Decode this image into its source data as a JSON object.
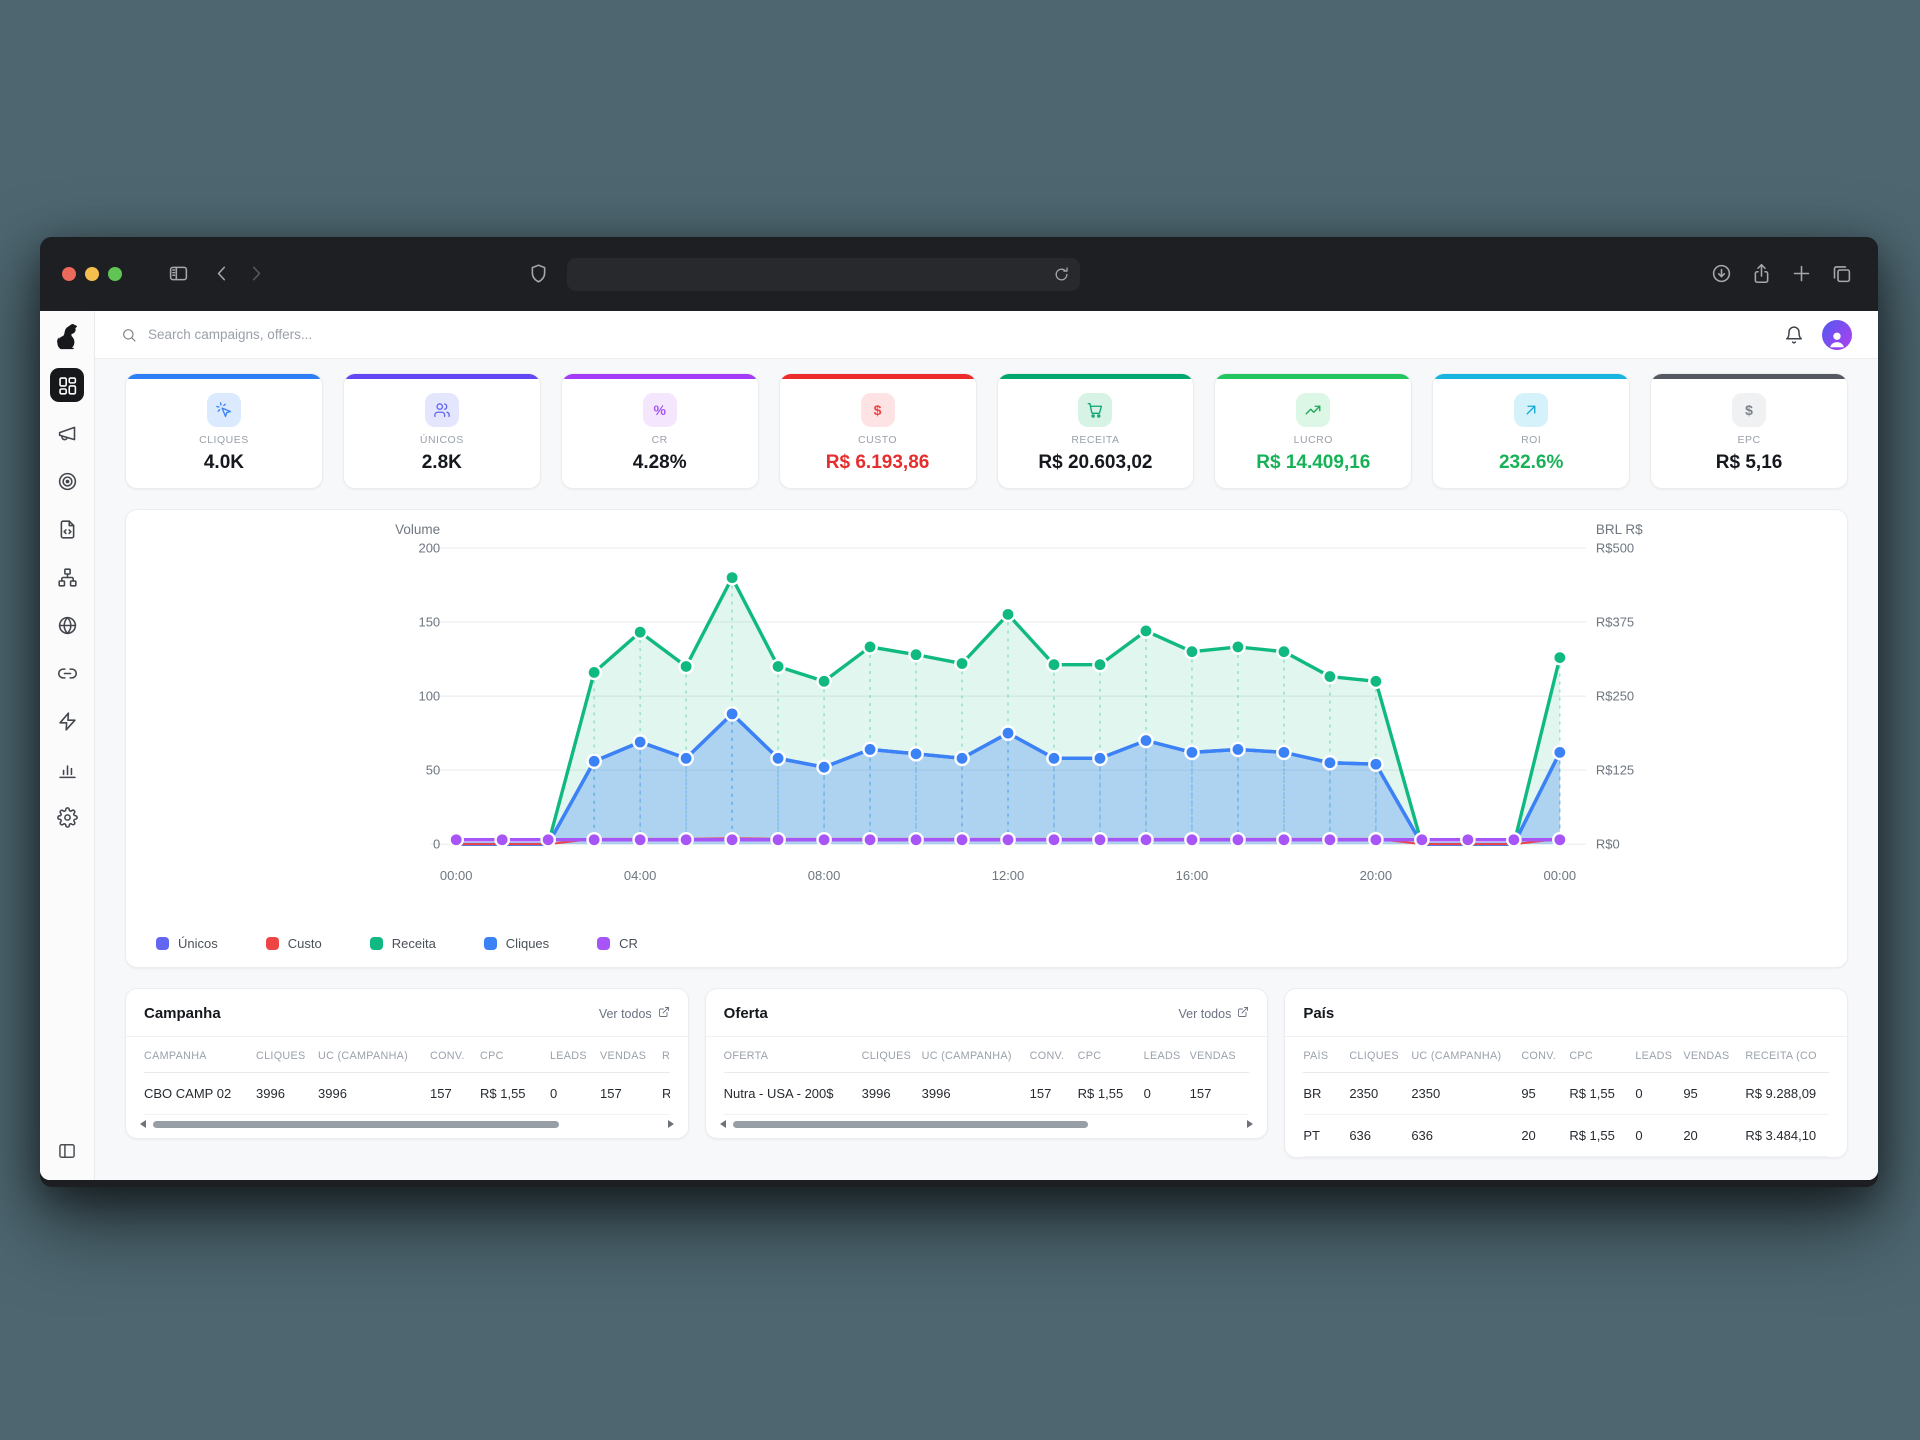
{
  "browser": {
    "traffic_lights": [
      {
        "name": "close",
        "color": "#ec695c"
      },
      {
        "name": "minimize",
        "color": "#f5bf50"
      },
      {
        "name": "zoom",
        "color": "#61c555"
      }
    ],
    "url_value": ""
  },
  "app": {
    "topbar": {
      "search_placeholder": "Search campaigns, offers..."
    },
    "sidebar": {
      "items": [
        {
          "icon": "dashboard-grid",
          "active": true
        },
        {
          "icon": "megaphone",
          "active": false
        },
        {
          "icon": "target",
          "active": false
        },
        {
          "icon": "file-code",
          "active": false
        },
        {
          "icon": "sitemap",
          "active": false
        },
        {
          "icon": "globe",
          "active": false
        },
        {
          "icon": "link",
          "active": false
        },
        {
          "icon": "zap",
          "active": false
        },
        {
          "icon": "bar-chart",
          "active": false
        },
        {
          "icon": "gear",
          "active": false
        }
      ]
    },
    "kpis": [
      {
        "id": "cliques",
        "label": "CLIQUES",
        "value": "4.0K",
        "accent": "#2e7ef6",
        "icon": "cursor-click",
        "icon_color": "#3b82f6",
        "icon_bg": "#dbeafe",
        "value_color": "#15181d"
      },
      {
        "id": "unicos",
        "label": "ÚNICOS",
        "value": "2.8K",
        "accent": "#6347f5",
        "icon": "users",
        "icon_color": "#6366f1",
        "icon_bg": "#e3e6fd",
        "value_color": "#15181d"
      },
      {
        "id": "cr",
        "label": "CR",
        "value": "4.28%",
        "accent": "#a43bf6",
        "icon": "percent",
        "icon_color": "#a855f7",
        "icon_bg": "#f3e6fd",
        "value_color": "#15181d"
      },
      {
        "id": "custo",
        "label": "CUSTO",
        "value": "R$ 6.193,86",
        "accent": "#ee2b2b",
        "icon": "dollar",
        "icon_color": "#ef4444",
        "icon_bg": "#fde3e3",
        "value_color": "#e62e2e"
      },
      {
        "id": "receita",
        "label": "RECEITA",
        "value": "R$ 20.603,02",
        "accent": "#00a86d",
        "icon": "cart",
        "icon_color": "#0da371",
        "icon_bg": "#d7f3e6",
        "value_color": "#15181d"
      },
      {
        "id": "lucro",
        "label": "LUCRO",
        "value": "R$ 14.409,16",
        "accent": "#22c55e",
        "icon": "trending-up",
        "icon_color": "#18a957",
        "icon_bg": "#dcf7e5",
        "value_color": "#17b257"
      },
      {
        "id": "roi",
        "label": "ROI",
        "value": "232.6%",
        "accent": "#17b4e0",
        "icon": "arrow-up-right",
        "icon_color": "#15a8d8",
        "icon_bg": "#d5f2fb",
        "value_color": "#17b257"
      },
      {
        "id": "epc",
        "label": "EPC",
        "value": "R$ 5,16",
        "accent": "#555a62",
        "icon": "dollar",
        "icon_color": "#7c828c",
        "icon_bg": "#f0f1f3",
        "value_color": "#15181d"
      }
    ],
    "chart_data": {
      "type": "line",
      "x_tick_labels": [
        "00:00",
        "04:00",
        "08:00",
        "12:00",
        "16:00",
        "20:00",
        "00:00"
      ],
      "x_tick_every": 4,
      "left_axis": {
        "title": "Volume",
        "ticks": [
          0,
          50,
          100,
          150,
          200
        ],
        "max": 200
      },
      "right_axis": {
        "title": "BRL R$",
        "ticks": [
          "R$0",
          "R$125",
          "R$250",
          "R$375",
          "R$500"
        ],
        "max": 500
      },
      "grid": true,
      "legend": [
        "Únicos",
        "Custo",
        "Receita",
        "Cliques",
        "CR"
      ],
      "series": [
        {
          "name": "Receita",
          "color": "#10b981",
          "axis": "right",
          "area": true,
          "area_opacity": 0.13,
          "dots": true,
          "droplines": true,
          "values": [
            0,
            0,
            0,
            290,
            358,
            300,
            450,
            300,
            275,
            333,
            320,
            305,
            388,
            303,
            303,
            360,
            325,
            333,
            325,
            283,
            275,
            0,
            0,
            0,
            315
          ]
        },
        {
          "name": "Únicos",
          "color": "#6366f1",
          "axis": "left",
          "area": false,
          "area_opacity": 0,
          "dots": false,
          "droplines": false,
          "values": [
            0,
            0,
            0,
            56,
            69,
            58,
            88,
            58,
            52,
            64,
            61,
            58,
            75,
            58,
            58,
            70,
            62,
            64,
            62,
            55,
            54,
            0,
            0,
            0,
            62
          ]
        },
        {
          "name": "Cliques",
          "color": "#3b82f6",
          "axis": "left",
          "area": true,
          "area_opacity": 0.3,
          "dots": true,
          "droplines": true,
          "values": [
            0,
            0,
            0,
            56,
            69,
            58,
            88,
            58,
            52,
            64,
            61,
            58,
            75,
            58,
            58,
            70,
            62,
            64,
            62,
            55,
            54,
            0,
            0,
            0,
            62
          ]
        },
        {
          "name": "Custo",
          "color": "#ef4444",
          "axis": "right",
          "area": false,
          "area_opacity": 0,
          "dots": false,
          "droplines": false,
          "values": [
            0,
            0,
            0,
            9,
            9,
            9,
            10,
            9,
            9,
            9,
            9,
            9,
            9,
            9,
            9,
            9,
            9,
            9,
            9,
            9,
            9,
            0,
            0,
            0,
            9
          ]
        },
        {
          "name": "CR",
          "color": "#a855f7",
          "axis": "left",
          "area": false,
          "area_opacity": 0,
          "dots": true,
          "droplines": false,
          "values": [
            3,
            3,
            3,
            3,
            3,
            3,
            3,
            3,
            3,
            3,
            3,
            3,
            3,
            3,
            3,
            3,
            3,
            3,
            3,
            3,
            3,
            3,
            3,
            3,
            3
          ]
        }
      ]
    },
    "tables": [
      {
        "id": "campanha",
        "title": "Campanha",
        "link_label": "Ver todos",
        "columns": [
          "CAMPANHA",
          "CLIQUES",
          "UC (CAMPANHA)",
          "CONV.",
          "CPC",
          "LEADS",
          "VENDAS",
          "R"
        ],
        "rows": [
          [
            "CBO CAMP 02",
            "3996",
            "3996",
            "157",
            "R$ 1,55",
            "0",
            "157",
            "R"
          ]
        ],
        "scrollbar": true
      },
      {
        "id": "oferta",
        "title": "Oferta",
        "link_label": "Ver todos",
        "columns": [
          "OFERTA",
          "CLIQUES",
          "UC (CAMPANHA)",
          "CONV.",
          "CPC",
          "LEADS",
          "VENDAS"
        ],
        "rows": [
          [
            "Nutra - USA - 200$",
            "3996",
            "3996",
            "157",
            "R$ 1,55",
            "0",
            "157"
          ]
        ],
        "scrollbar": true
      },
      {
        "id": "pais",
        "title": "País",
        "link_label": null,
        "columns": [
          "PAÍS",
          "CLIQUES",
          "UC (CAMPANHA)",
          "CONV.",
          "CPC",
          "LEADS",
          "VENDAS",
          "RECEITA (CO"
        ],
        "rows": [
          [
            "BR",
            "2350",
            "2350",
            "95",
            "R$ 1,55",
            "0",
            "95",
            "R$ 9.288,09"
          ],
          [
            "PT",
            "636",
            "636",
            "20",
            "R$ 1,55",
            "0",
            "20",
            "R$ 3.484,10"
          ]
        ],
        "scrollbar": false
      }
    ]
  }
}
